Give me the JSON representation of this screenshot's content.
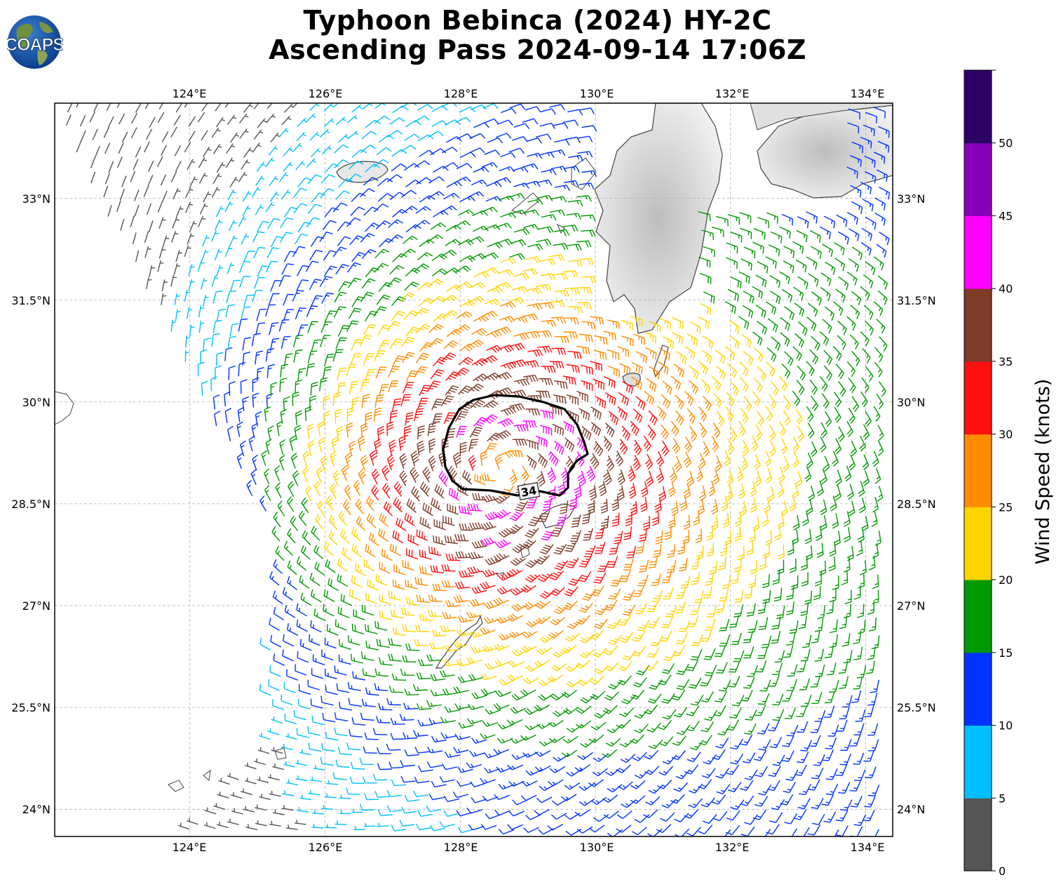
{
  "header": {
    "title_line1": "Typhoon Bebinca (2024) HY-2C",
    "title_line2": "Ascending Pass 2024-09-14 17:06Z"
  },
  "logo": {
    "text": "COAPS"
  },
  "map": {
    "lon_labels": [
      "124°E",
      "126°E",
      "128°E",
      "130°E",
      "132°E",
      "134°E"
    ],
    "lat_labels": [
      "33°N",
      "31.5°N",
      "30°N",
      "28.5°N",
      "27°N",
      "25.5°N",
      "24°N"
    ],
    "lon_range": [
      122.0,
      134.4
    ],
    "lat_range": [
      23.6,
      34.4
    ],
    "contour_label": "34",
    "storm_center": {
      "lon": 128.6,
      "lat": 29.0
    }
  },
  "colorbar": {
    "label": "Wind Speed (knots)",
    "ticks": [
      "0",
      "5",
      "10",
      "15",
      "20",
      "25",
      "30",
      "35",
      "40",
      "45",
      "50"
    ],
    "bins": [
      {
        "min": 0,
        "max": 5,
        "color": "#555555"
      },
      {
        "min": 5,
        "max": 10,
        "color": "#00bfff"
      },
      {
        "min": 10,
        "max": 15,
        "color": "#0033ff"
      },
      {
        "min": 15,
        "max": 20,
        "color": "#009900"
      },
      {
        "min": 20,
        "max": 25,
        "color": "#ffd400"
      },
      {
        "min": 25,
        "max": 30,
        "color": "#ff8c00"
      },
      {
        "min": 30,
        "max": 35,
        "color": "#ff1010"
      },
      {
        "min": 35,
        "max": 40,
        "color": "#7f3a28"
      },
      {
        "min": 40,
        "max": 45,
        "color": "#ff00ff"
      },
      {
        "min": 45,
        "max": 50,
        "color": "#8800bb"
      },
      {
        "min": 50,
        "max": 55,
        "color": "#2d0066"
      }
    ]
  }
}
